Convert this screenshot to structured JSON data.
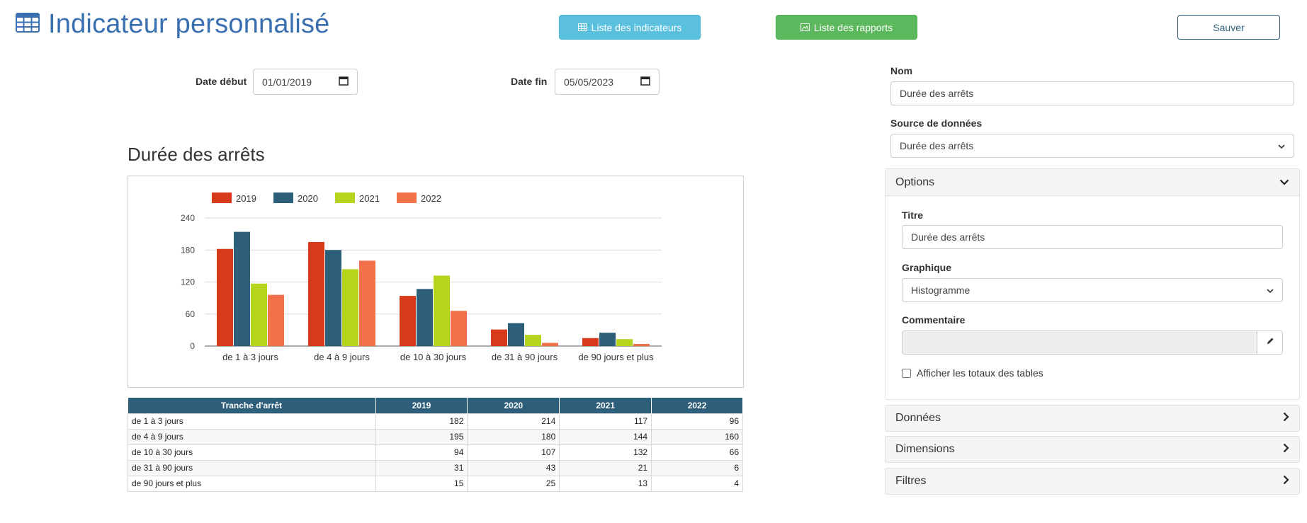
{
  "header": {
    "title": "Indicateur personnalisé",
    "btn_indicateurs": "Liste des indicateurs",
    "btn_rapports": "Liste des rapports",
    "btn_save": "Sauver"
  },
  "filters": {
    "date_debut_label": "Date début",
    "date_debut_value": "01/01/2019",
    "date_fin_label": "Date fin",
    "date_fin_value": "05/05/2023"
  },
  "chart_data": {
    "type": "bar",
    "title": "Durée des arrêts",
    "categories": [
      "de 1 à 3 jours",
      "de 4 à 9 jours",
      "de 10 à 30 jours",
      "de 31 à 90 jours",
      "de 90 jours et plus"
    ],
    "series": [
      {
        "name": "2019",
        "color": "#d63a1a",
        "values": [
          182,
          195,
          94,
          31,
          15
        ]
      },
      {
        "name": "2020",
        "color": "#2d5f7a",
        "values": [
          214,
          180,
          107,
          43,
          25
        ]
      },
      {
        "name": "2021",
        "color": "#b5d41c",
        "values": [
          117,
          144,
          132,
          21,
          13
        ]
      },
      {
        "name": "2022",
        "color": "#f2714a",
        "values": [
          96,
          160,
          66,
          6,
          4
        ]
      }
    ],
    "yticks": [
      0,
      60,
      120,
      180,
      240
    ],
    "ylim": [
      0,
      240
    ],
    "grid": true,
    "legend": "top-left"
  },
  "table": {
    "headers": [
      "Tranche d'arrêt",
      "2019",
      "2020",
      "2021",
      "2022"
    ],
    "rows": [
      [
        "de 1 à 3 jours",
        "182",
        "214",
        "117",
        "96"
      ],
      [
        "de 4 à 9 jours",
        "195",
        "180",
        "144",
        "160"
      ],
      [
        "de 10 à 30 jours",
        "94",
        "107",
        "132",
        "66"
      ],
      [
        "de 31 à 90 jours",
        "31",
        "43",
        "21",
        "6"
      ],
      [
        "de 90 jours et plus",
        "15",
        "25",
        "13",
        "4"
      ]
    ]
  },
  "sidebar": {
    "nom_label": "Nom",
    "nom_value": "Durée des arrêts",
    "source_label": "Source de données",
    "source_value": "Durée des arrêts",
    "options_title": "Options",
    "titre_label": "Titre",
    "titre_value": "Durée des arrêts",
    "graphique_label": "Graphique",
    "graphique_value": "Histogramme",
    "commentaire_label": "Commentaire",
    "commentaire_value": "",
    "totaux_label": "Afficher les totaux des tables",
    "panels": [
      "Données",
      "Dimensions",
      "Filtres"
    ]
  }
}
